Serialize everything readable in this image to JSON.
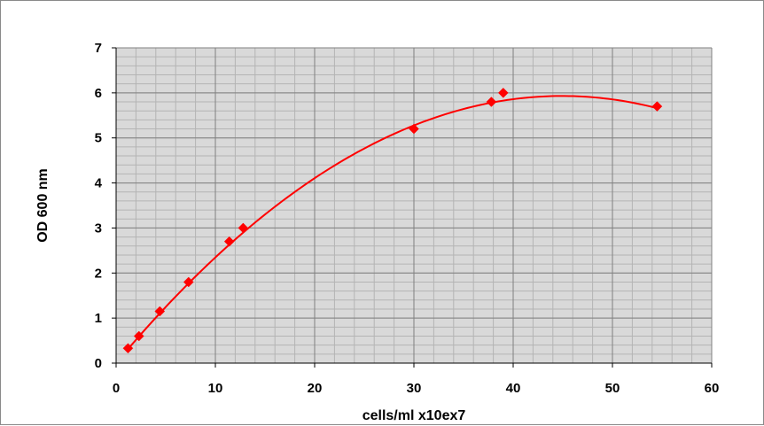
{
  "chart_data": {
    "type": "scatter",
    "title": "",
    "xlabel": "cells/ml x10ex7",
    "ylabel": "OD 600 nm",
    "xlim": [
      0,
      60
    ],
    "ylim": [
      0,
      7
    ],
    "x_ticks": [
      "0",
      "10",
      "20",
      "30",
      "40",
      "50",
      "60"
    ],
    "y_ticks": [
      "0",
      "1",
      "2",
      "3",
      "4",
      "5",
      "6",
      "7"
    ],
    "grid": true,
    "legend": "none",
    "series": [
      {
        "points": [
          {
            "x": 1.2,
            "y": 0.33
          },
          {
            "x": 2.3,
            "y": 0.6
          },
          {
            "x": 4.4,
            "y": 1.15
          },
          {
            "x": 7.3,
            "y": 1.8
          },
          {
            "x": 11.4,
            "y": 2.7
          },
          {
            "x": 12.8,
            "y": 3.0
          },
          {
            "x": 30.0,
            "y": 5.2
          },
          {
            "x": 37.8,
            "y": 5.8
          },
          {
            "x": 39.0,
            "y": 6.0
          },
          {
            "x": 54.5,
            "y": 5.7
          }
        ],
        "trendline": {
          "type": "polynomial",
          "order": 2,
          "coefficients": [
            -0.00294,
            0.2641,
            0.0
          ]
        }
      }
    ],
    "colors": {
      "plot_background": "#d9d9d9",
      "major_grid": "#808080",
      "minor_grid": "#b4b4b4",
      "series": "#ff0000"
    }
  }
}
